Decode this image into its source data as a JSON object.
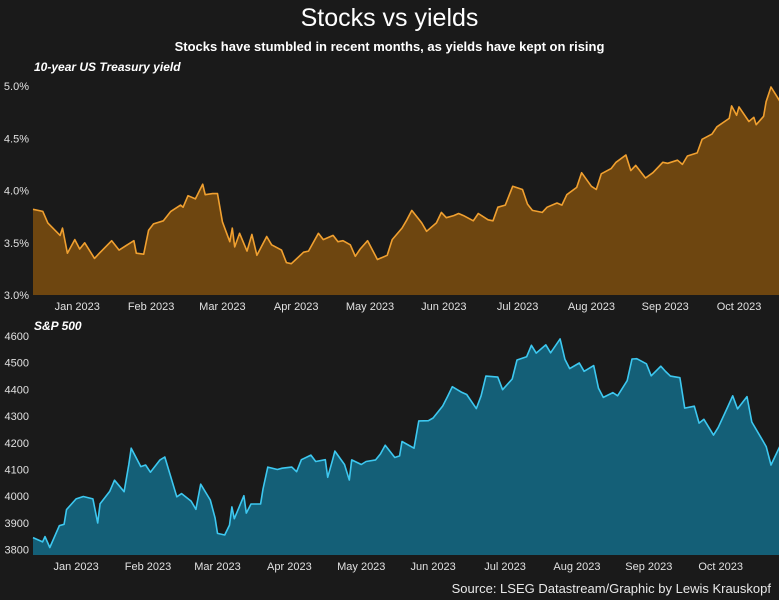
{
  "title": "Stocks vs yields",
  "subtitle": "Stocks have stumbled in recent months, as yields have kept on rising",
  "source": "Source: LSEG Datastream/Graphic by Lewis Krauskopf",
  "colors": {
    "background": "#1a1a1a",
    "yield_fill": "#6e4610",
    "yield_line": "#f0a030",
    "stock_fill": "#145f77",
    "stock_line": "#3dc8f0"
  },
  "chart_data": [
    {
      "type": "area",
      "label": "10-year US Treasury yield",
      "ylim": [
        3.0,
        5.0
      ],
      "yticks": [
        3.0,
        3.5,
        4.0,
        4.5,
        5.0
      ],
      "ytick_labels": [
        "3.0%",
        "3.5%",
        "4.0%",
        "4.5%",
        "5.0%"
      ],
      "xlim": [
        "2022-12-23",
        "2023-10-19"
      ],
      "xticks": [
        "Jan 2023",
        "Feb 2023",
        "Mar 2023",
        "Apr 2023",
        "May 2023",
        "Jun 2023",
        "Jul 2023",
        "Aug 2023",
        "Sep 2023",
        "Oct 2023"
      ],
      "xtick_dates": [
        "2023-01-10",
        "2023-02-09",
        "2023-03-10",
        "2023-04-09",
        "2023-05-09",
        "2023-06-08",
        "2023-07-08",
        "2023-08-07",
        "2023-09-06",
        "2023-10-06"
      ],
      "points": [
        [
          "2022-12-23",
          3.82
        ],
        [
          "2022-12-27",
          3.8
        ],
        [
          "2022-12-29",
          3.69
        ],
        [
          "2023-01-03",
          3.57
        ],
        [
          "2023-01-04",
          3.64
        ],
        [
          "2023-01-06",
          3.4
        ],
        [
          "2023-01-09",
          3.53
        ],
        [
          "2023-01-11",
          3.44
        ],
        [
          "2023-01-13",
          3.5
        ],
        [
          "2023-01-17",
          3.35
        ],
        [
          "2023-01-19",
          3.4
        ],
        [
          "2023-01-24",
          3.52
        ],
        [
          "2023-01-27",
          3.43
        ],
        [
          "2023-01-31",
          3.49
        ],
        [
          "2023-02-02",
          3.52
        ],
        [
          "2023-02-03",
          3.4
        ],
        [
          "2023-02-06",
          3.39
        ],
        [
          "2023-02-08",
          3.62
        ],
        [
          "2023-02-10",
          3.68
        ],
        [
          "2023-02-14",
          3.71
        ],
        [
          "2023-02-17",
          3.8
        ],
        [
          "2023-02-21",
          3.86
        ],
        [
          "2023-02-22",
          3.84
        ],
        [
          "2023-02-24",
          3.95
        ],
        [
          "2023-02-27",
          3.92
        ],
        [
          "2023-03-02",
          4.06
        ],
        [
          "2023-03-03",
          3.96
        ],
        [
          "2023-03-06",
          3.97
        ],
        [
          "2023-03-08",
          3.97
        ],
        [
          "2023-03-10",
          3.7
        ],
        [
          "2023-03-13",
          3.51
        ],
        [
          "2023-03-14",
          3.64
        ],
        [
          "2023-03-15",
          3.46
        ],
        [
          "2023-03-17",
          3.59
        ],
        [
          "2023-03-20",
          3.42
        ],
        [
          "2023-03-22",
          3.58
        ],
        [
          "2023-03-24",
          3.38
        ],
        [
          "2023-03-28",
          3.56
        ],
        [
          "2023-03-30",
          3.48
        ],
        [
          "2023-04-03",
          3.43
        ],
        [
          "2023-04-05",
          3.31
        ],
        [
          "2023-04-07",
          3.3
        ],
        [
          "2023-04-12",
          3.41
        ],
        [
          "2023-04-14",
          3.42
        ],
        [
          "2023-04-18",
          3.59
        ],
        [
          "2023-04-20",
          3.53
        ],
        [
          "2023-04-24",
          3.57
        ],
        [
          "2023-04-26",
          3.51
        ],
        [
          "2023-04-28",
          3.52
        ],
        [
          "2023-05-01",
          3.48
        ],
        [
          "2023-05-03",
          3.37
        ],
        [
          "2023-05-05",
          3.44
        ],
        [
          "2023-05-08",
          3.52
        ],
        [
          "2023-05-10",
          3.43
        ],
        [
          "2023-05-12",
          3.34
        ],
        [
          "2023-05-16",
          3.38
        ],
        [
          "2023-05-18",
          3.53
        ],
        [
          "2023-05-22",
          3.64
        ],
        [
          "2023-05-24",
          3.72
        ],
        [
          "2023-05-26",
          3.81
        ],
        [
          "2023-05-30",
          3.69
        ],
        [
          "2023-06-01",
          3.61
        ],
        [
          "2023-06-05",
          3.69
        ],
        [
          "2023-06-07",
          3.79
        ],
        [
          "2023-06-09",
          3.74
        ],
        [
          "2023-06-12",
          3.76
        ],
        [
          "2023-06-14",
          3.78
        ],
        [
          "2023-06-16",
          3.76
        ],
        [
          "2023-06-20",
          3.71
        ],
        [
          "2023-06-22",
          3.78
        ],
        [
          "2023-06-26",
          3.72
        ],
        [
          "2023-06-28",
          3.71
        ],
        [
          "2023-06-30",
          3.84
        ],
        [
          "2023-07-03",
          3.86
        ],
        [
          "2023-07-06",
          4.04
        ],
        [
          "2023-07-10",
          4.01
        ],
        [
          "2023-07-12",
          3.87
        ],
        [
          "2023-07-14",
          3.81
        ],
        [
          "2023-07-18",
          3.79
        ],
        [
          "2023-07-20",
          3.84
        ],
        [
          "2023-07-24",
          3.88
        ],
        [
          "2023-07-26",
          3.86
        ],
        [
          "2023-07-28",
          3.96
        ],
        [
          "2023-08-01",
          4.03
        ],
        [
          "2023-08-03",
          4.17
        ],
        [
          "2023-08-07",
          4.04
        ],
        [
          "2023-08-09",
          4.01
        ],
        [
          "2023-08-11",
          4.16
        ],
        [
          "2023-08-15",
          4.21
        ],
        [
          "2023-08-17",
          4.27
        ],
        [
          "2023-08-21",
          4.34
        ],
        [
          "2023-08-23",
          4.19
        ],
        [
          "2023-08-25",
          4.24
        ],
        [
          "2023-08-29",
          4.12
        ],
        [
          "2023-09-01",
          4.17
        ],
        [
          "2023-09-05",
          4.27
        ],
        [
          "2023-09-07",
          4.26
        ],
        [
          "2023-09-11",
          4.29
        ],
        [
          "2023-09-13",
          4.25
        ],
        [
          "2023-09-15",
          4.33
        ],
        [
          "2023-09-19",
          4.36
        ],
        [
          "2023-09-21",
          4.49
        ],
        [
          "2023-09-25",
          4.54
        ],
        [
          "2023-09-27",
          4.61
        ],
        [
          "2023-10-02",
          4.69
        ],
        [
          "2023-10-03",
          4.81
        ],
        [
          "2023-10-05",
          4.72
        ],
        [
          "2023-10-06",
          4.8
        ],
        [
          "2023-10-10",
          4.66
        ],
        [
          "2023-10-12",
          4.7
        ],
        [
          "2023-10-13",
          4.63
        ],
        [
          "2023-10-16",
          4.71
        ],
        [
          "2023-10-17",
          4.85
        ],
        [
          "2023-10-19",
          4.99
        ],
        [
          "2023-10-23",
          4.84
        ],
        [
          "2023-10-25",
          4.95
        ],
        [
          "2023-10-27",
          4.84
        ]
      ]
    },
    {
      "type": "area",
      "label": "S&P 500",
      "ylim": [
        3780,
        4600
      ],
      "yticks": [
        3800,
        3900,
        4000,
        4100,
        4200,
        4300,
        4400,
        4500,
        4600
      ],
      "ytick_labels": [
        "3800",
        "3900",
        "4000",
        "4100",
        "4200",
        "4300",
        "4400",
        "4500",
        "4600"
      ],
      "xlim": [
        "2022-12-23",
        "2023-10-27"
      ],
      "xticks": [
        "Jan 2023",
        "Feb 2023",
        "Mar 2023",
        "Apr 2023",
        "May 2023",
        "Jun 2023",
        "Jul 2023",
        "Aug 2023",
        "Sep 2023",
        "Oct 2023"
      ],
      "xtick_dates": [
        "2023-01-10",
        "2023-02-09",
        "2023-03-10",
        "2023-04-09",
        "2023-05-09",
        "2023-06-08",
        "2023-07-08",
        "2023-08-07",
        "2023-09-06",
        "2023-10-06"
      ],
      "points": [
        [
          "2022-12-23",
          3845
        ],
        [
          "2022-12-27",
          3829
        ],
        [
          "2022-12-28",
          3849
        ],
        [
          "2022-12-30",
          3808
        ],
        [
          "2023-01-03",
          3890
        ],
        [
          "2023-01-05",
          3895
        ],
        [
          "2023-01-06",
          3950
        ],
        [
          "2023-01-10",
          3990
        ],
        [
          "2023-01-13",
          3999
        ],
        [
          "2023-01-17",
          3990
        ],
        [
          "2023-01-19",
          3900
        ],
        [
          "2023-01-20",
          3972
        ],
        [
          "2023-01-24",
          4018
        ],
        [
          "2023-01-26",
          4060
        ],
        [
          "2023-01-30",
          4017
        ],
        [
          "2023-02-01",
          4119
        ],
        [
          "2023-02-02",
          4180
        ],
        [
          "2023-02-06",
          4111
        ],
        [
          "2023-02-08",
          4117
        ],
        [
          "2023-02-10",
          4090
        ],
        [
          "2023-02-14",
          4136
        ],
        [
          "2023-02-16",
          4147
        ],
        [
          "2023-02-21",
          3998
        ],
        [
          "2023-02-23",
          4010
        ],
        [
          "2023-02-27",
          3982
        ],
        [
          "2023-03-01",
          3951
        ],
        [
          "2023-03-03",
          4045
        ],
        [
          "2023-03-07",
          3986
        ],
        [
          "2023-03-09",
          3918
        ],
        [
          "2023-03-10",
          3861
        ],
        [
          "2023-03-13",
          3855
        ],
        [
          "2023-03-15",
          3892
        ],
        [
          "2023-03-16",
          3960
        ],
        [
          "2023-03-17",
          3916
        ],
        [
          "2023-03-21",
          4002
        ],
        [
          "2023-03-22",
          3937
        ],
        [
          "2023-03-24",
          3971
        ],
        [
          "2023-03-28",
          3971
        ],
        [
          "2023-03-29",
          4027
        ],
        [
          "2023-03-31",
          4109
        ],
        [
          "2023-04-04",
          4100
        ],
        [
          "2023-04-06",
          4105
        ],
        [
          "2023-04-10",
          4109
        ],
        [
          "2023-04-12",
          4092
        ],
        [
          "2023-04-14",
          4137
        ],
        [
          "2023-04-18",
          4154
        ],
        [
          "2023-04-20",
          4130
        ],
        [
          "2023-04-24",
          4137
        ],
        [
          "2023-04-25",
          4071
        ],
        [
          "2023-04-27",
          4135
        ],
        [
          "2023-04-28",
          4169
        ],
        [
          "2023-05-02",
          4119
        ],
        [
          "2023-05-04",
          4061
        ],
        [
          "2023-05-05",
          4136
        ],
        [
          "2023-05-09",
          4119
        ],
        [
          "2023-05-11",
          4130
        ],
        [
          "2023-05-15",
          4136
        ],
        [
          "2023-05-17",
          4158
        ],
        [
          "2023-05-19",
          4191
        ],
        [
          "2023-05-23",
          4145
        ],
        [
          "2023-05-25",
          4151
        ],
        [
          "2023-05-26",
          4205
        ],
        [
          "2023-05-31",
          4180
        ],
        [
          "2023-06-02",
          4282
        ],
        [
          "2023-06-06",
          4283
        ],
        [
          "2023-06-08",
          4293
        ],
        [
          "2023-06-12",
          4338
        ],
        [
          "2023-06-14",
          4373
        ],
        [
          "2023-06-16",
          4410
        ],
        [
          "2023-06-20",
          4389
        ],
        [
          "2023-06-22",
          4381
        ],
        [
          "2023-06-26",
          4328
        ],
        [
          "2023-06-28",
          4376
        ],
        [
          "2023-06-30",
          4450
        ],
        [
          "2023-07-05",
          4446
        ],
        [
          "2023-07-07",
          4399
        ],
        [
          "2023-07-11",
          4439
        ],
        [
          "2023-07-13",
          4510
        ],
        [
          "2023-07-17",
          4522
        ],
        [
          "2023-07-19",
          4565
        ],
        [
          "2023-07-21",
          4536
        ],
        [
          "2023-07-25",
          4567
        ],
        [
          "2023-07-27",
          4537
        ],
        [
          "2023-07-31",
          4589
        ],
        [
          "2023-08-02",
          4513
        ],
        [
          "2023-08-04",
          4478
        ],
        [
          "2023-08-08",
          4499
        ],
        [
          "2023-08-10",
          4468
        ],
        [
          "2023-08-14",
          4489
        ],
        [
          "2023-08-16",
          4404
        ],
        [
          "2023-08-18",
          4370
        ],
        [
          "2023-08-22",
          4388
        ],
        [
          "2023-08-24",
          4376
        ],
        [
          "2023-08-28",
          4433
        ],
        [
          "2023-08-30",
          4514
        ],
        [
          "2023-09-01",
          4515
        ],
        [
          "2023-09-05",
          4496
        ],
        [
          "2023-09-07",
          4451
        ],
        [
          "2023-09-11",
          4487
        ],
        [
          "2023-09-13",
          4467
        ],
        [
          "2023-09-15",
          4450
        ],
        [
          "2023-09-19",
          4444
        ],
        [
          "2023-09-21",
          4330
        ],
        [
          "2023-09-25",
          4337
        ],
        [
          "2023-09-27",
          4274
        ],
        [
          "2023-09-29",
          4288
        ],
        [
          "2023-10-03",
          4229
        ],
        [
          "2023-10-05",
          4258
        ],
        [
          "2023-10-09",
          4336
        ],
        [
          "2023-10-11",
          4376
        ],
        [
          "2023-10-13",
          4327
        ],
        [
          "2023-10-17",
          4373
        ],
        [
          "2023-10-19",
          4278
        ],
        [
          "2023-10-23",
          4217
        ],
        [
          "2023-10-25",
          4186
        ],
        [
          "2023-10-27",
          4117
        ],
        [
          "2023-10-31",
          4193
        ]
      ]
    }
  ]
}
